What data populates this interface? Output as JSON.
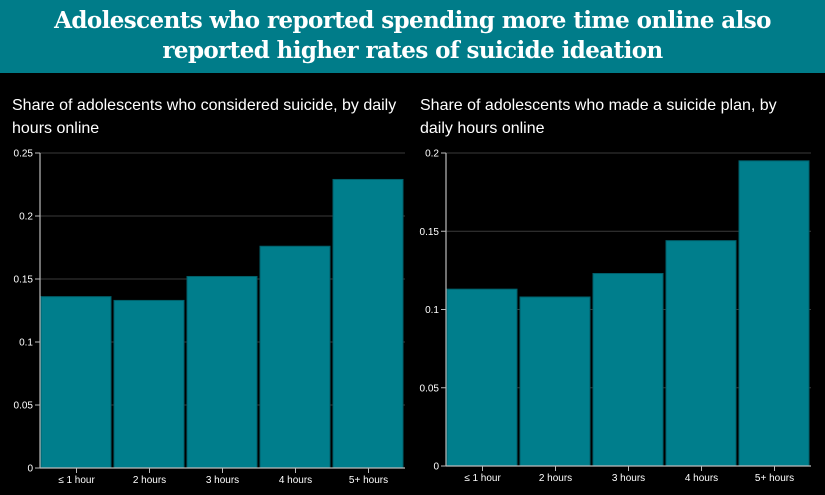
{
  "header": {
    "title_line1": "Adolescents who reported spending more time online also",
    "title_line2": "reported higher rates of suicide ideation"
  },
  "colors": {
    "accent": "#007c89",
    "bar": "#007e8c",
    "bar_outline": "#005f6a",
    "grid": "#3a3a3a",
    "axis": "#bbbbbb"
  },
  "chart_data": [
    {
      "type": "bar",
      "title": "Share of adolescents who considered suicide, by daily hours online",
      "xlabel": "",
      "ylabel": "",
      "categories": [
        "≤ 1 hour",
        "2 hours",
        "3 hours",
        "4 hours",
        "5+ hours"
      ],
      "values": [
        0.136,
        0.133,
        0.152,
        0.176,
        0.229
      ],
      "ylim": [
        0,
        0.25
      ],
      "yticks": [
        0,
        0.05,
        0.1,
        0.15,
        0.2,
        0.25
      ],
      "ytick_labels": [
        "0",
        "0.05",
        "0.1",
        "0.15",
        "0.2",
        "0.25"
      ],
      "grid": true
    },
    {
      "type": "bar",
      "title": "Share of adolescents who made a suicide plan, by daily hours online",
      "xlabel": "",
      "ylabel": "",
      "categories": [
        "≤ 1 hour",
        "2 hours",
        "3 hours",
        "4 hours",
        "5+ hours"
      ],
      "values": [
        0.113,
        0.108,
        0.123,
        0.144,
        0.195
      ],
      "ylim": [
        0,
        0.2
      ],
      "yticks": [
        0,
        0.05,
        0.1,
        0.15,
        0.2
      ],
      "ytick_labels": [
        "0",
        "0.05",
        "0.1",
        "0.15",
        "0.2"
      ],
      "grid": true
    }
  ]
}
